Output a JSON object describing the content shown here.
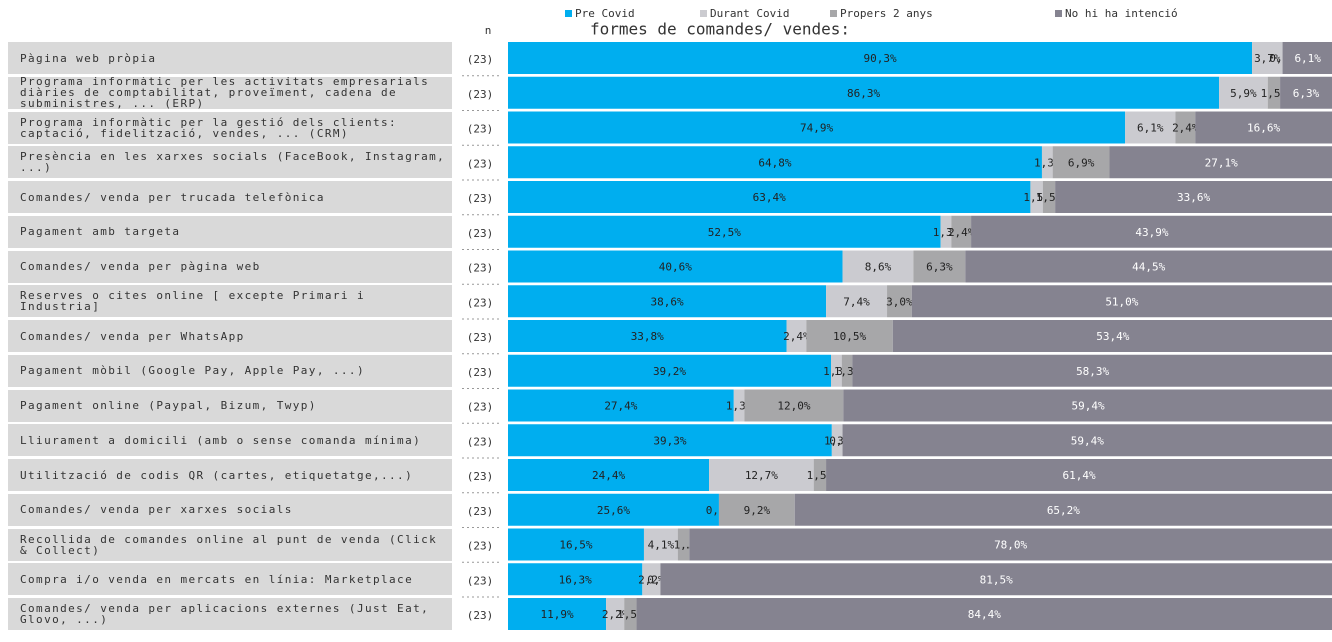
{
  "chart_data": {
    "type": "stacked-bar-horizontal",
    "title": "formes de comandes/ vendes:",
    "n_header": "n",
    "categories": [
      "Pàgina web pròpia",
      "Programa informàtic per les activitats empresarials diàries de comptabilitat, proveïment, cadena de subministres, ... (ERP)",
      "Programa informàtic per la gestió dels clients: captació, fidelització, vendes, ... (CRM)",
      "Presència en les xarxes socials (FaceBook, Instagram, ...)",
      "Comandes/ venda per trucada telefònica",
      "Pagament amb targeta",
      "Comandes/ venda per pàgina web",
      "Reserves o cites online [ excepte Primari i Industria]",
      "Comandes/ venda per WhatsApp",
      "Pagament mòbil (Google Pay, Apple Pay, ...)",
      "Pagament online (Paypal, Bizum, Twyp)",
      "Lliurament a domicili (amb o sense comanda mínima)",
      "Utilització de codis QR (cartes, etiquetatge,...)",
      "Comandes/ venda per xarxes socials",
      "Recollida de comandes online al punt de venda (Click & Collect)",
      "Compra i/o venda en mercats en línia: Marketplace",
      "Comandes/ venda per aplicacions externes (Just Eat, Glovo, ...)"
    ],
    "n": [
      "(23)",
      "(23)",
      "(23)",
      "(23)",
      "(23)",
      "(23)",
      "(23)",
      "(23)",
      "(23)",
      "(23)",
      "(23)",
      "(23)",
      "(23)",
      "(23)",
      "(23)",
      "(23)",
      "(23)"
    ],
    "xlim": [
      0,
      100
    ],
    "series": [
      {
        "name": "Pre Covid",
        "color": "#00aeef",
        "values": [
          90.3,
          86.3,
          74.9,
          64.8,
          63.4,
          52.5,
          40.6,
          38.6,
          33.8,
          39.2,
          27.4,
          39.3,
          24.4,
          25.6,
          16.5,
          16.3,
          11.9
        ],
        "value_labels": [
          "90,3%",
          "86,3%",
          "74,9%",
          "64,8%",
          "63,4%",
          "52,5%",
          "40,6%",
          "38,6%",
          "33,8%",
          "39,2%",
          "27,4%",
          "39,3%",
          "24,4%",
          "25,6%",
          "16,5%",
          "16,3%",
          "11,9%"
        ]
      },
      {
        "name": "Durant Covid",
        "color": "#cbcbd0",
        "values": [
          3.7,
          5.9,
          6.1,
          1.3,
          1.5,
          1.3,
          8.6,
          7.4,
          2.4,
          1.3,
          1.3,
          1.3,
          12.7,
          0.0,
          4.1,
          2.2,
          2.2
        ],
        "value_labels": [
          "3,7%",
          "5,9%",
          "6,1%",
          "1,3%",
          "1,5%",
          "1,3%",
          "8,6%",
          "7,4%",
          "2,4%",
          "1,3%",
          "1,3%",
          "1,3%",
          "12,7%",
          "0,0%",
          "4,1%",
          "2,2%",
          "2,2%"
        ]
      },
      {
        "name": "Propers 2 anys",
        "color": "#a7a7a9",
        "values": [
          0.0,
          1.5,
          2.4,
          6.9,
          1.5,
          2.4,
          6.3,
          3.0,
          10.5,
          1.3,
          12.0,
          0.0,
          1.5,
          9.2,
          1.4,
          0.0,
          1.5
        ],
        "value_labels": [
          "0,0%",
          "1,5%",
          "2,4%",
          "6,9%",
          "1,5%",
          "2,4%",
          "6,3%",
          "3,0%",
          "10,5%",
          "1,3%",
          "12,0%",
          "0,0%",
          "1,5%",
          "9,2%",
          "1,…",
          "0,0%",
          "1,5%"
        ]
      },
      {
        "name": "No hi ha intenció",
        "color": "#858390",
        "values": [
          6.1,
          6.3,
          16.6,
          27.1,
          33.6,
          43.9,
          44.5,
          51.0,
          53.4,
          58.3,
          59.4,
          59.4,
          61.4,
          65.2,
          78.0,
          81.5,
          84.4
        ],
        "value_labels": [
          "6,1%",
          "6,3%",
          "16,6%",
          "27,1%",
          "33,6%",
          "43,9%",
          "44,5%",
          "51,0%",
          "53,4%",
          "58,3%",
          "59,4%",
          "59,4%",
          "61,4%",
          "65,2%",
          "78,0%",
          "81,5%",
          "84,4%"
        ]
      }
    ]
  }
}
